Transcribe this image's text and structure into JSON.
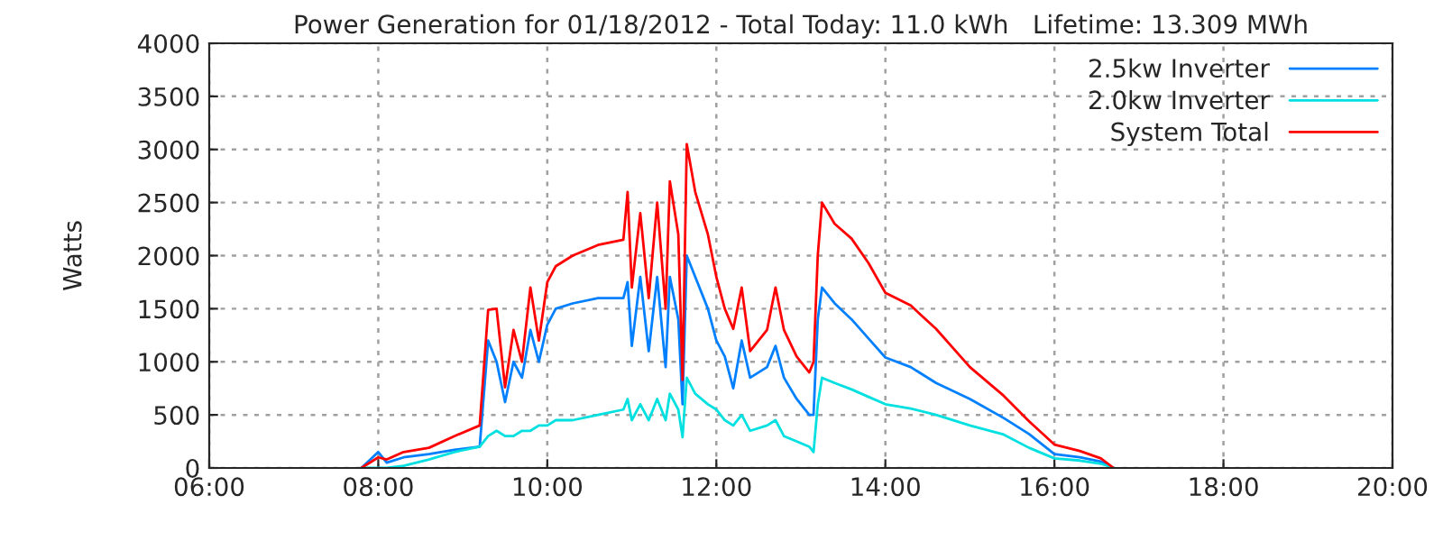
{
  "chart_data": {
    "type": "line",
    "title": "Power Generation for 01/18/2012 - Total Today: 11.0 kWh   Lifetime: 13.309 MWh",
    "ylabel": "Watts",
    "x": [
      7.8,
      8.0,
      8.1,
      8.3,
      8.6,
      8.9,
      9.2,
      9.3,
      9.4,
      9.5,
      9.6,
      9.7,
      9.8,
      9.9,
      10.0,
      10.1,
      10.3,
      10.6,
      10.9,
      10.95,
      11.0,
      11.1,
      11.2,
      11.3,
      11.4,
      11.45,
      11.55,
      11.6,
      11.65,
      11.75,
      11.9,
      12.0,
      12.1,
      12.2,
      12.3,
      12.4,
      12.6,
      12.7,
      12.8,
      12.95,
      13.1,
      13.15,
      13.2,
      13.25,
      13.4,
      13.6,
      13.8,
      14.0,
      14.3,
      14.6,
      15.0,
      15.4,
      15.7,
      16.0,
      16.3,
      16.55,
      16.7
    ],
    "series": [
      {
        "name": "2.5kw Inverter",
        "color": "#0080ff",
        "values": [
          0,
          150,
          50,
          100,
          130,
          170,
          200,
          1200,
          1000,
          620,
          1000,
          850,
          1300,
          1000,
          1350,
          1500,
          1550,
          1600,
          1600,
          1750,
          1150,
          1800,
          1100,
          1800,
          950,
          1800,
          1400,
          600,
          2000,
          1800,
          1500,
          1200,
          1050,
          750,
          1200,
          850,
          950,
          1150,
          850,
          650,
          500,
          500,
          1400,
          1700,
          1550,
          1400,
          1220,
          1040,
          950,
          800,
          650,
          470,
          320,
          130,
          100,
          60,
          0
        ]
      },
      {
        "name": "2.0kw Inverter",
        "color": "#00e0e0",
        "values": [
          0,
          0,
          0,
          20,
          80,
          150,
          200,
          300,
          350,
          300,
          300,
          350,
          350,
          400,
          400,
          450,
          450,
          500,
          550,
          650,
          450,
          600,
          450,
          650,
          450,
          700,
          550,
          290,
          850,
          700,
          600,
          550,
          450,
          400,
          500,
          350,
          400,
          450,
          300,
          250,
          200,
          150,
          600,
          850,
          800,
          740,
          670,
          600,
          560,
          500,
          400,
          315,
          190,
          90,
          70,
          40,
          0
        ]
      },
      {
        "name": "System Total",
        "color": "#ff0000",
        "values": [
          0,
          100,
          80,
          150,
          190,
          300,
          400,
          1490,
          1500,
          760,
          1300,
          1000,
          1700,
          1200,
          1750,
          1900,
          2000,
          2100,
          2150,
          2600,
          1700,
          2400,
          1600,
          2500,
          1500,
          2700,
          2200,
          830,
          3050,
          2600,
          2200,
          1800,
          1500,
          1310,
          1700,
          1100,
          1300,
          1700,
          1300,
          1050,
          900,
          1000,
          2000,
          2500,
          2300,
          2160,
          1930,
          1650,
          1530,
          1310,
          950,
          680,
          440,
          220,
          160,
          90,
          0
        ]
      }
    ],
    "xlim": [
      6,
      20
    ],
    "xticks": [
      {
        "value": 6,
        "label": "06:00"
      },
      {
        "value": 8,
        "label": "08:00"
      },
      {
        "value": 10,
        "label": "10:00"
      },
      {
        "value": 12,
        "label": "12:00"
      },
      {
        "value": 14,
        "label": "14:00"
      },
      {
        "value": 16,
        "label": "16:00"
      },
      {
        "value": 18,
        "label": "18:00"
      },
      {
        "value": 20,
        "label": "20:00"
      }
    ],
    "ylim": [
      0,
      4000
    ],
    "yticks": [
      0,
      500,
      1000,
      1500,
      2000,
      2500,
      3000,
      3500,
      4000
    ],
    "grid": true,
    "legend": "top right",
    "line_style": "solid"
  }
}
